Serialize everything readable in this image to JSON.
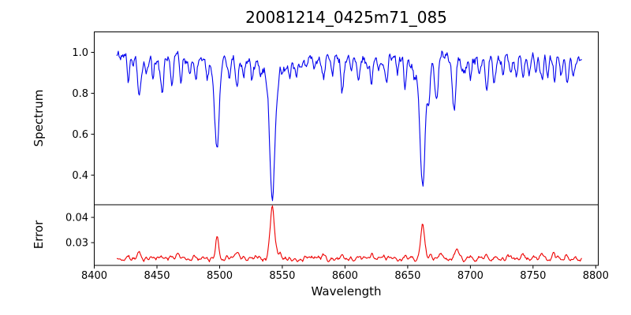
{
  "chart_data": {
    "type": "line",
    "title": "20081214_0425m71_085",
    "xlabel": "Wavelength",
    "grid": false,
    "legend": "none",
    "x_axis": {
      "lim": [
        8400,
        8802
      ],
      "ticks": [
        8400,
        8450,
        8500,
        8550,
        8600,
        8650,
        8700,
        8750,
        8800
      ],
      "tick_labels": [
        "8400",
        "8450",
        "8500",
        "8550",
        "8600",
        "8650",
        "8700",
        "8750",
        "8800"
      ],
      "data_range": [
        8418,
        8789
      ],
      "sample_step": 0.6
    },
    "panels": [
      {
        "name": "spectrum",
        "ylabel": "Spectrum",
        "color": "#0000ee",
        "ylim": [
          0.255,
          1.1
        ],
        "yticks": [
          0.4,
          0.6,
          0.8,
          1.0
        ],
        "ytick_labels": [
          "0.4",
          "0.6",
          "0.8",
          "1.0"
        ],
        "continuum": 0.972,
        "noise_amplitude": 0.055,
        "line_columns": [
          "center_wavelength",
          "bottom_flux",
          "sigma",
          "wing_depth",
          "wing_sigma"
        ],
        "absorption_lines": [
          [
            8427,
            0.88,
            1.0
          ],
          [
            8436,
            0.79,
            1.2
          ],
          [
            8441,
            0.9,
            0.8
          ],
          [
            8447,
            0.87,
            1.0
          ],
          [
            8454,
            0.79,
            1.2
          ],
          [
            8462,
            0.85,
            1.0
          ],
          [
            8469,
            0.85,
            1.0
          ],
          [
            8476,
            0.88,
            0.9
          ],
          [
            8481,
            0.86,
            1.0
          ],
          [
            8490,
            0.9,
            0.9
          ],
          [
            8498,
            0.505,
            1.7,
            0.05,
            5.0
          ],
          [
            8508,
            0.89,
            0.9
          ],
          [
            8514,
            0.83,
            1.1
          ],
          [
            8519,
            0.86,
            0.9
          ],
          [
            8526,
            0.89,
            0.9
          ],
          [
            8542,
            0.3,
            2.0,
            0.12,
            7.0
          ],
          [
            8556,
            0.89,
            1.0
          ],
          [
            8561,
            0.9,
            0.9
          ],
          [
            8568,
            0.91,
            0.9
          ],
          [
            8575,
            0.92,
            0.9
          ],
          [
            8583,
            0.85,
            1.1
          ],
          [
            8590,
            0.9,
            0.9
          ],
          [
            8598,
            0.83,
            1.2
          ],
          [
            8605,
            0.91,
            0.9
          ],
          [
            8611,
            0.88,
            1.0
          ],
          [
            8618,
            0.89,
            0.9
          ],
          [
            8621,
            0.85,
            1.1
          ],
          [
            8627,
            0.9,
            0.9
          ],
          [
            8633,
            0.87,
            1.0
          ],
          [
            8642,
            0.9,
            0.9
          ],
          [
            8648,
            0.86,
            1.1
          ],
          [
            8655,
            0.91,
            0.9
          ],
          [
            8662,
            0.34,
            1.9,
            0.1,
            6.0
          ],
          [
            8667,
            0.84,
            1.0
          ],
          [
            8673,
            0.8,
            1.2
          ],
          [
            8687,
            0.73,
            1.4
          ],
          [
            8695,
            0.9,
            0.9
          ],
          [
            8700,
            0.88,
            1.0
          ],
          [
            8707,
            0.91,
            0.9
          ],
          [
            8713,
            0.83,
            1.2
          ],
          [
            8719,
            0.87,
            1.0
          ],
          [
            8726,
            0.88,
            1.0
          ],
          [
            8732,
            0.9,
            0.9
          ],
          [
            8737,
            0.88,
            1.0
          ],
          [
            8742,
            0.87,
            1.0
          ],
          [
            8747,
            0.88,
            1.0
          ],
          [
            8752,
            0.9,
            0.9
          ],
          [
            8757,
            0.86,
            1.1
          ],
          [
            8762,
            0.89,
            0.9
          ],
          [
            8767,
            0.87,
            1.0
          ],
          [
            8772,
            0.89,
            0.9
          ],
          [
            8777,
            0.86,
            1.1
          ],
          [
            8782,
            0.9,
            0.9
          ]
        ]
      },
      {
        "name": "error",
        "ylabel": "Error",
        "color": "#ee0000",
        "ylim": [
          0.021,
          0.045
        ],
        "yticks": [
          0.03,
          0.04
        ],
        "ytick_labels": [
          "0.03",
          "0.04"
        ],
        "baseline": 0.0237,
        "noise_amplitude": 0.0015,
        "peak_columns": [
          "center_wavelength",
          "peak_value",
          "sigma",
          "wing_height",
          "wing_sigma"
        ],
        "peaks": [
          [
            8427,
            0.0248,
            1.0
          ],
          [
            8436,
            0.0263,
            1.2
          ],
          [
            8447,
            0.0247,
            1.0
          ],
          [
            8454,
            0.0251,
            1.1
          ],
          [
            8467,
            0.0249,
            1.0
          ],
          [
            8481,
            0.0247,
            1.0
          ],
          [
            8498,
            0.0322,
            1.3
          ],
          [
            8506,
            0.0247,
            0.9
          ],
          [
            8514,
            0.0257,
            1.1
          ],
          [
            8542,
            0.0443,
            1.7,
            0.0012,
            4.0
          ],
          [
            8548,
            0.0254,
            1.0
          ],
          [
            8583,
            0.0247,
            1.0
          ],
          [
            8598,
            0.0251,
            1.1
          ],
          [
            8611,
            0.0248,
            1.0
          ],
          [
            8621,
            0.0249,
            1.0
          ],
          [
            8648,
            0.025,
            1.0
          ],
          [
            8662,
            0.037,
            1.5,
            0.0009,
            4.0
          ],
          [
            8676,
            0.0258,
            1.0
          ],
          [
            8689,
            0.0272,
            1.2
          ],
          [
            8700,
            0.0247,
            1.0
          ],
          [
            8713,
            0.0257,
            1.1
          ],
          [
            8730,
            0.0251,
            1.0
          ],
          [
            8742,
            0.0249,
            1.0
          ],
          [
            8757,
            0.0253,
            1.0
          ],
          [
            8766,
            0.0261,
            1.0
          ],
          [
            8777,
            0.0256,
            1.1
          ]
        ]
      }
    ],
    "frame_color": "#000000",
    "background_color": "#ffffff"
  }
}
